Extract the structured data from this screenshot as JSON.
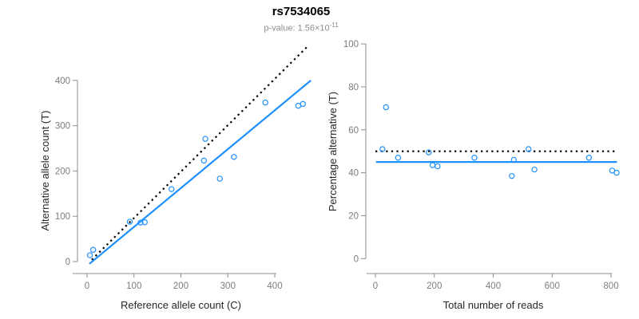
{
  "title": "rs7534065",
  "subtitle": {
    "text": "p-value: 1.56×10",
    "exponent": "-11"
  },
  "colors": {
    "accent_blue": "#1E90FF",
    "reference_black": "#000000",
    "axis_line": "#8c8c8c",
    "tick_label": "#7d7d7d",
    "axis_title": "#262626",
    "subtitle_gray": "#8e8e8e"
  },
  "chart_data": [
    {
      "type": "scatter",
      "title": "rs7534065",
      "xlabel": "Reference allele count (C)",
      "ylabel": "Alternative allele count (T)",
      "xticks": [
        0,
        100,
        200,
        300,
        400
      ],
      "yticks": [
        0,
        100,
        200,
        300,
        400
      ],
      "xlim": [
        -30,
        480
      ],
      "ylim": [
        -10,
        480
      ],
      "grid": false,
      "legend": "none",
      "points": [
        [
          6,
          14
        ],
        [
          13,
          26
        ],
        [
          91,
          88
        ],
        [
          114,
          86
        ],
        [
          123,
          87
        ],
        [
          180,
          160
        ],
        [
          249,
          223
        ],
        [
          252,
          271
        ],
        [
          283,
          183
        ],
        [
          313,
          231
        ],
        [
          380,
          351
        ],
        [
          450,
          344
        ],
        [
          460,
          348
        ]
      ],
      "lines": [
        {
          "name": "expected-identity-line",
          "style": "dotted",
          "color": "#000000",
          "x1": 10,
          "y1": 4,
          "x2": 468,
          "y2": 473
        },
        {
          "name": "fit-line",
          "style": "solid",
          "color": "#1E90FF",
          "x1": 5,
          "y1": -5,
          "x2": 477,
          "y2": 400
        }
      ]
    },
    {
      "type": "scatter",
      "title": "",
      "xlabel": "Total number of reads",
      "ylabel": "Percentage alternative (T)",
      "xticks": [
        0,
        200,
        400,
        600,
        800
      ],
      "yticks": [
        0,
        20,
        40,
        60,
        80,
        100
      ],
      "xlim": [
        -20,
        840
      ],
      "ylim": [
        0,
        100
      ],
      "grid": false,
      "legend": "none",
      "points": [
        [
          24,
          51
        ],
        [
          36,
          70.5
        ],
        [
          77,
          47
        ],
        [
          181,
          49.5
        ],
        [
          194,
          43.5
        ],
        [
          211,
          43
        ],
        [
          336,
          47
        ],
        [
          463,
          38.5
        ],
        [
          470,
          46
        ],
        [
          520,
          51
        ],
        [
          540,
          41.5
        ],
        [
          725,
          47
        ],
        [
          804,
          41
        ],
        [
          819,
          40
        ]
      ],
      "lines": [
        {
          "name": "expected-percentage-line",
          "style": "dotted",
          "color": "#000000",
          "x1": 0,
          "y1": 50,
          "x2": 812,
          "y2": 50
        },
        {
          "name": "fit-line",
          "style": "solid",
          "color": "#1E90FF",
          "x1": 2,
          "y1": 45,
          "x2": 820,
          "y2": 45
        }
      ]
    }
  ]
}
